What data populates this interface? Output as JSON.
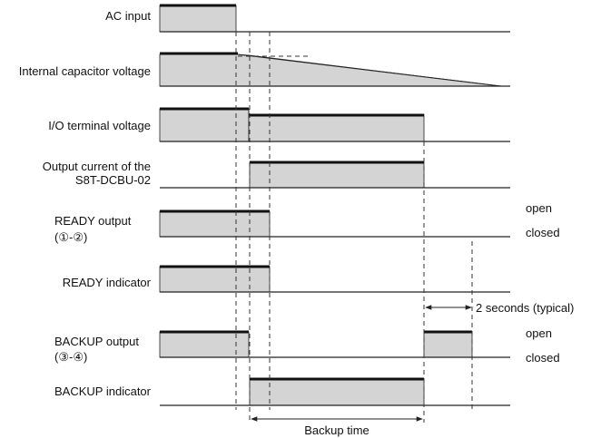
{
  "signals": {
    "ac_input": "AC input",
    "capacitor": "Internal capacitor voltage",
    "io_voltage": "I/O terminal voltage",
    "output_current_line1": "Output current of the",
    "output_current_line2": "S8T-DCBU-02",
    "ready_output_line1": "READY output",
    "ready_output_line2": "(①-②)",
    "ready_indicator": "READY indicator",
    "backup_output_line1": "BACKUP output",
    "backup_output_line2": "(③-④)",
    "backup_indicator": "BACKUP indicator"
  },
  "states": {
    "ready_open": "open",
    "ready_closed": "closed",
    "backup_open": "open",
    "backup_closed": "closed"
  },
  "annotations": {
    "delay": "2 seconds (typical)",
    "backup_time": "Backup time"
  }
}
